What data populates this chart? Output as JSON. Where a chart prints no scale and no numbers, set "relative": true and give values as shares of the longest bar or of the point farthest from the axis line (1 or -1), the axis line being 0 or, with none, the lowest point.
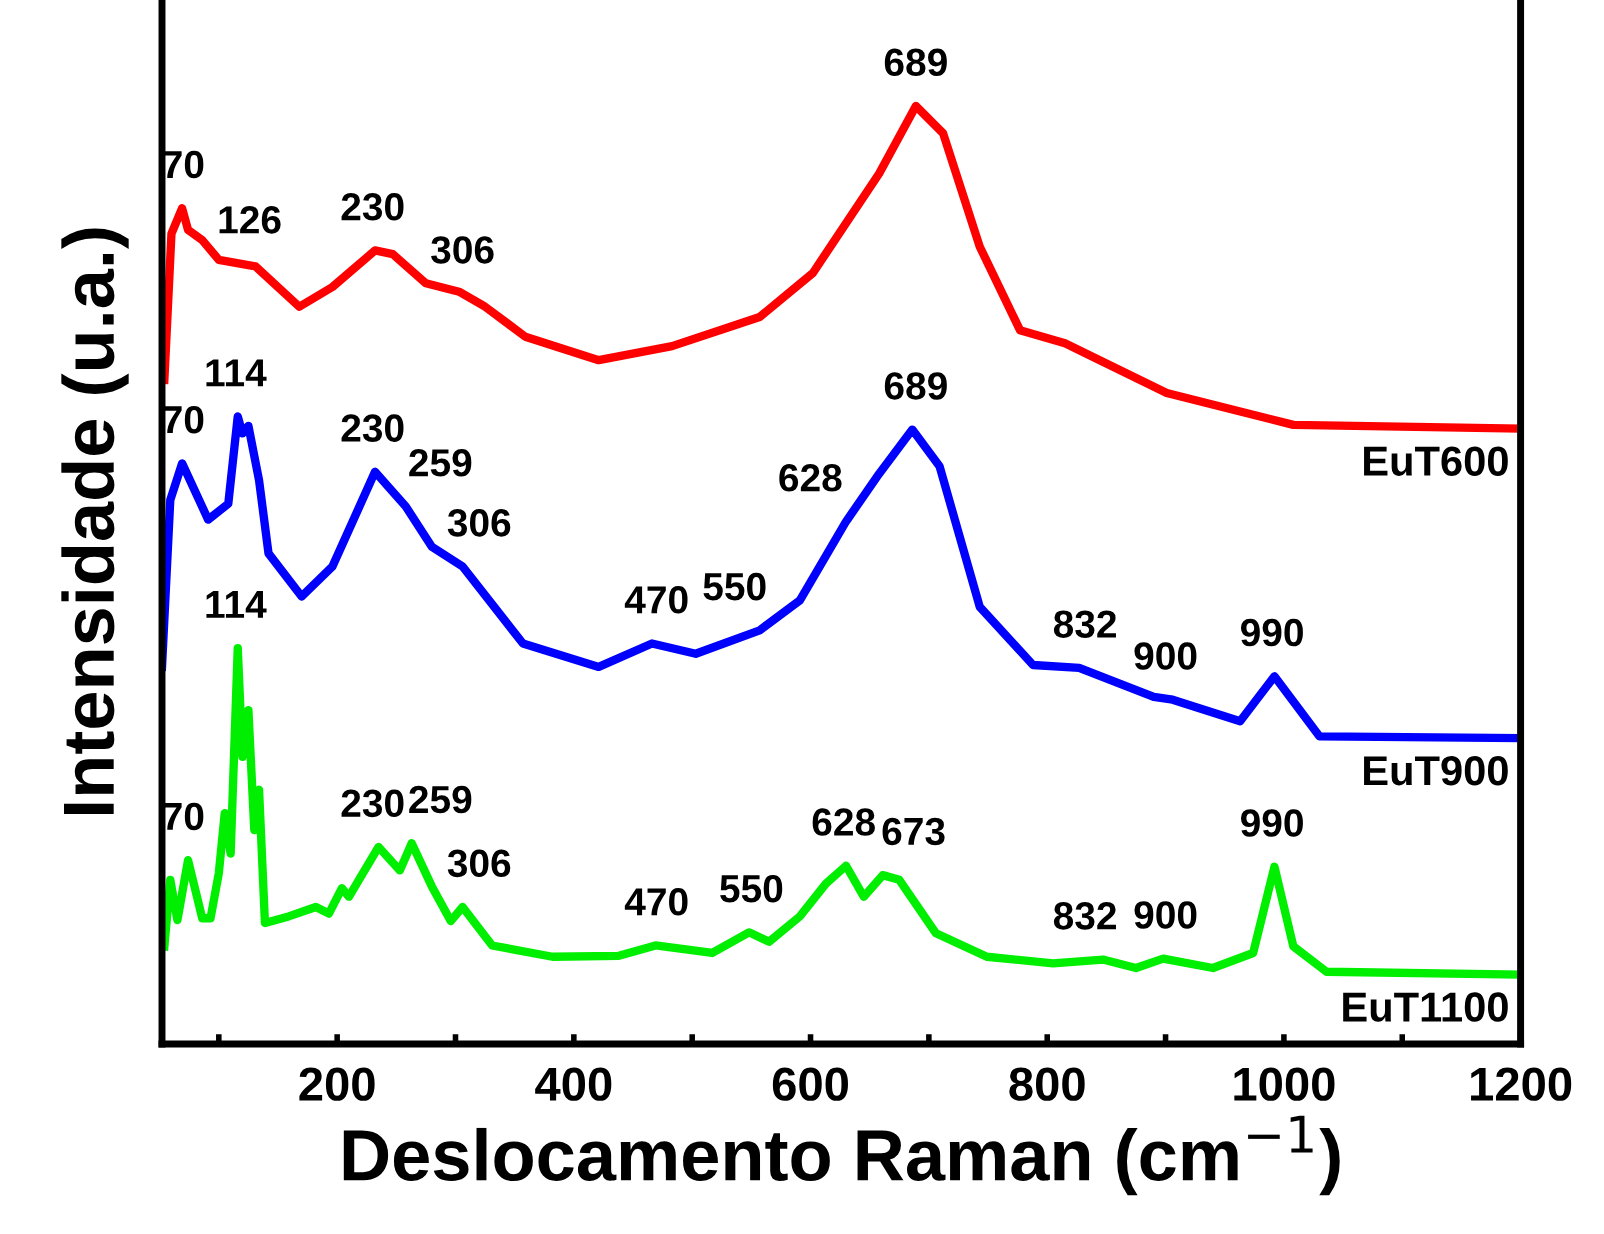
{
  "chart_data": {
    "type": "line",
    "relative": true,
    "xlabel": "Deslocamento Raman (cm$^{−1}$)",
    "ylabel": "Intensidade (u.a.)",
    "xlim": [
      52,
      1200
    ],
    "xticks": [
      {
        "value": 100,
        "label": null
      },
      200,
      {
        "value": 300,
        "label": null
      },
      400,
      {
        "value": 500,
        "label": null
      },
      600,
      {
        "value": 700,
        "label": null
      },
      800,
      {
        "value": 900,
        "label": null
      },
      1000,
      {
        "value": 1100,
        "label": null
      },
      1200
    ],
    "grid": false,
    "marker": "none",
    "line_style": "solid",
    "tick_labels": "x",
    "series": [
      {
        "name": "EuT600",
        "color": "#ff0000",
        "x": [
          54,
          60,
          69,
          74,
          86,
          100,
          131,
          168,
          196,
          232,
          247,
          275,
          303,
          325,
          359,
          421,
          483,
          557,
          602,
          658,
          689,
          712,
          743,
          777,
          815,
          901,
          1008,
          1200
        ],
        "values": [
          0.708,
          0.864,
          0.891,
          0.868,
          0.857,
          0.836,
          0.829,
          0.786,
          0.807,
          0.846,
          0.842,
          0.811,
          0.802,
          0.786,
          0.754,
          0.729,
          0.744,
          0.775,
          0.822,
          0.928,
          1.0,
          0.971,
          0.85,
          0.761,
          0.747,
          0.694,
          0.66,
          0.656
        ]
      },
      {
        "name": "EuT900",
        "color": "#0000ff",
        "x": [
          52,
          59,
          69,
          91,
          108,
          116,
          120,
          125,
          134,
          142,
          170,
          196,
          232,
          258,
          280,
          306,
          357,
          421,
          466,
          503,
          557,
          591,
          630,
          658,
          686,
          709,
          743,
          788,
          827,
          890,
          906,
          963,
          992,
          1030,
          1200
        ],
        "values": [
          0.402,
          0.58,
          0.619,
          0.559,
          0.576,
          0.669,
          0.651,
          0.659,
          0.601,
          0.523,
          0.477,
          0.509,
          0.61,
          0.573,
          0.53,
          0.509,
          0.427,
          0.402,
          0.427,
          0.416,
          0.441,
          0.473,
          0.557,
          0.608,
          0.655,
          0.616,
          0.466,
          0.404,
          0.401,
          0.37,
          0.367,
          0.344,
          0.392,
          0.328,
          0.326
        ]
      },
      {
        "name": "EuT1100",
        "color": "#00ee00",
        "x": [
          54,
          59,
          65,
          74,
          86,
          93,
          100,
          105,
          110,
          116,
          120,
          125,
          130,
          134,
          139,
          159,
          182,
          193,
          204,
          210,
          235,
          253,
          263,
          280,
          296,
          306,
          331,
          382,
          438,
          469,
          517,
          548,
          565,
          591,
          613,
          630,
          645,
          661,
          675,
          706,
          749,
          805,
          847,
          875,
          898,
          940,
          974,
          992,
          1008,
          1036,
          1200
        ],
        "values": [
          0.104,
          0.175,
          0.132,
          0.196,
          0.134,
          0.134,
          0.182,
          0.246,
          0.203,
          0.422,
          0.306,
          0.356,
          0.228,
          0.271,
          0.129,
          0.136,
          0.146,
          0.139,
          0.166,
          0.157,
          0.21,
          0.185,
          0.214,
          0.168,
          0.131,
          0.146,
          0.105,
          0.093,
          0.094,
          0.105,
          0.097,
          0.119,
          0.109,
          0.136,
          0.171,
          0.19,
          0.157,
          0.18,
          0.175,
          0.118,
          0.093,
          0.086,
          0.09,
          0.081,
          0.091,
          0.081,
          0.097,
          0.189,
          0.104,
          0.077,
          0.074
        ]
      }
    ],
    "annotations": [
      {
        "text": "70",
        "x": 70,
        "y": 0.891
      },
      {
        "text": "126",
        "x": 126,
        "y": 0.832
      },
      {
        "text": "230",
        "x": 230,
        "y": 0.846
      },
      {
        "text": "306",
        "x": 306,
        "y": 0.8
      },
      {
        "text": "689",
        "x": 689,
        "y": 1.0
      },
      {
        "text": "70",
        "x": 70,
        "y": 0.619
      },
      {
        "text": "114",
        "x": 114,
        "y": 0.669
      },
      {
        "text": "230",
        "x": 230,
        "y": 0.61
      },
      {
        "text": "259",
        "x": 259,
        "y": 0.573
      },
      {
        "text": "306",
        "x": 306,
        "y": 0.509
      },
      {
        "text": "470",
        "x": 470,
        "y": 0.427
      },
      {
        "text": "550",
        "x": 550,
        "y": 0.441
      },
      {
        "text": "628",
        "x": 628,
        "y": 0.557
      },
      {
        "text": "689",
        "x": 689,
        "y": 0.655
      },
      {
        "text": "832",
        "x": 832,
        "y": 0.401
      },
      {
        "text": "900",
        "x": 900,
        "y": 0.367
      },
      {
        "text": "990",
        "x": 990,
        "y": 0.392
      },
      {
        "text": "70",
        "x": 70,
        "y": 0.196
      },
      {
        "text": "114",
        "x": 114,
        "y": 0.422
      },
      {
        "text": "230",
        "x": 230,
        "y": 0.21
      },
      {
        "text": "259",
        "x": 259,
        "y": 0.214
      },
      {
        "text": "306",
        "x": 306,
        "y": 0.146
      },
      {
        "text": "470",
        "x": 470,
        "y": 0.105
      },
      {
        "text": "550",
        "x": 550,
        "y": 0.119
      },
      {
        "text": "628",
        "x": 628,
        "y": 0.19
      },
      {
        "text": "673",
        "x": 673,
        "y": 0.18
      },
      {
        "text": "832",
        "x": 832,
        "y": 0.09
      },
      {
        "text": "900",
        "x": 900,
        "y": 0.091
      },
      {
        "text": "990",
        "x": 990,
        "y": 0.189
      }
    ]
  }
}
